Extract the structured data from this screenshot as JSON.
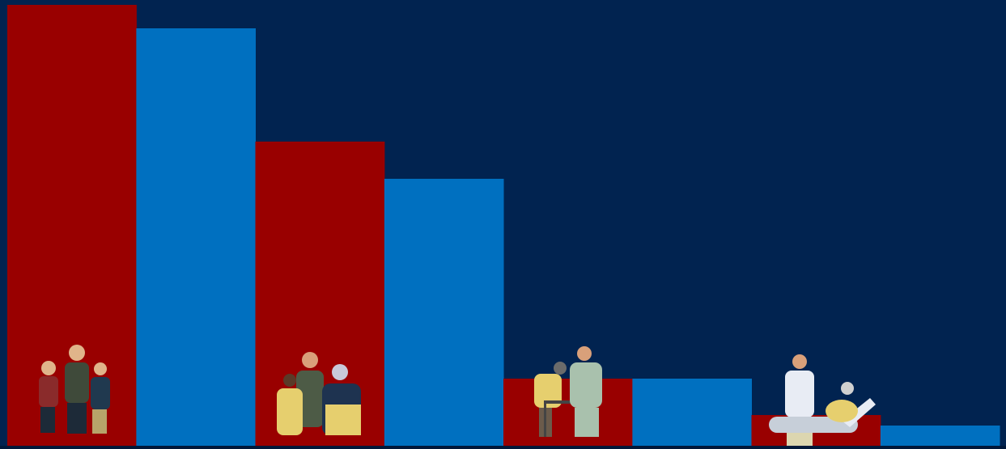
{
  "chart_data": {
    "type": "bar",
    "series": [
      {
        "color": "#990000",
        "values": [
          545,
          376,
          83,
          38
        ]
      },
      {
        "color": "#0070c0",
        "values": [
          516,
          330,
          83,
          25
        ]
      }
    ],
    "ylim": [
      0,
      545
    ],
    "background": "#012350"
  }
}
